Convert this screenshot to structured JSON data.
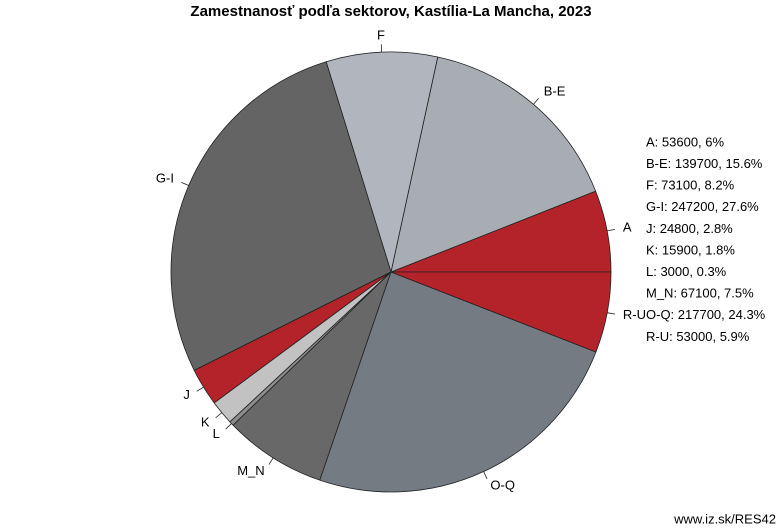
{
  "chart_data": {
    "type": "pie",
    "title": "Zamestnanosť podľa sektorov, Kastília-La Mancha, 2023",
    "categories": [
      "A",
      "B-E",
      "F",
      "G-I",
      "J",
      "K",
      "L",
      "M_N",
      "O-Q",
      "R-U"
    ],
    "values": [
      53600,
      139700,
      73100,
      247200,
      24800,
      15900,
      3000,
      67100,
      217700,
      53000
    ],
    "value_labels": [
      "A: 53600, 6%",
      "B-E: 139700, 15.6%",
      "F: 73100, 8.2%",
      "G-I: 247200, 27.6%",
      "J: 24800, 2.8%",
      "K: 15900, 1.8%",
      "L: 3000, 0.3%",
      "M_N: 67100, 7.5%",
      "O-Q: 217700, 24.3%",
      "R-U: 53000, 5.9%"
    ],
    "colors": [
      "#b5232a",
      "#a8acb3",
      "#b1b6be",
      "#646464",
      "#b5232a",
      "#c2c2c2",
      "#8c8c8c",
      "#686868",
      "#747b83",
      "#b5232a"
    ],
    "source": "www.iz.sk/RES42"
  }
}
